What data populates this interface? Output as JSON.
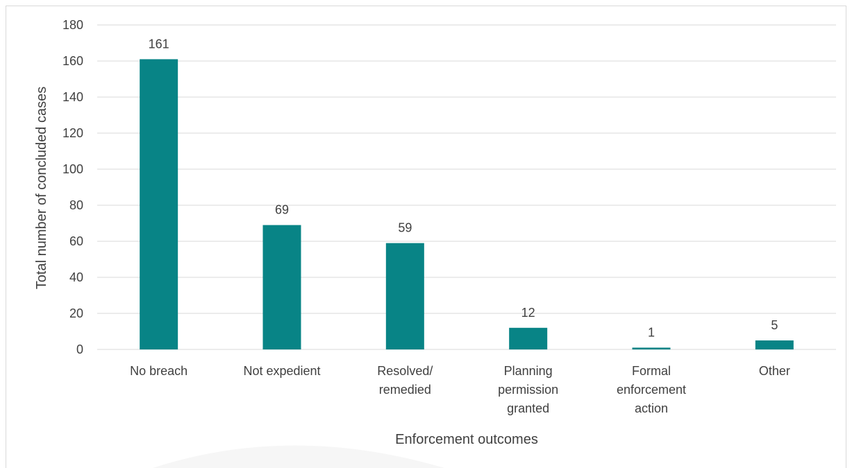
{
  "chart_data": {
    "type": "bar",
    "categories": [
      [
        "No breach"
      ],
      [
        "Not expedient"
      ],
      [
        "Resolved/",
        "remedied"
      ],
      [
        "Planning",
        "permission",
        "granted"
      ],
      [
        "Formal",
        "enforcement",
        "action"
      ],
      [
        "Other"
      ]
    ],
    "values": [
      161,
      69,
      59,
      12,
      1,
      5
    ],
    "data_labels": [
      "161",
      "69",
      "59",
      "12",
      "1",
      "5"
    ],
    "xlabel": "Enforcement outcomes",
    "ylabel": "Total number of concluded cases",
    "ylim": [
      0,
      180
    ],
    "yticks": [
      "0",
      "20",
      "40",
      "60",
      "80",
      "100",
      "120",
      "140",
      "160",
      "180"
    ],
    "grid": true,
    "legend": "none",
    "bar_color": "#088486",
    "grid_color": "#d9d9d9",
    "text_color": "#404040"
  }
}
